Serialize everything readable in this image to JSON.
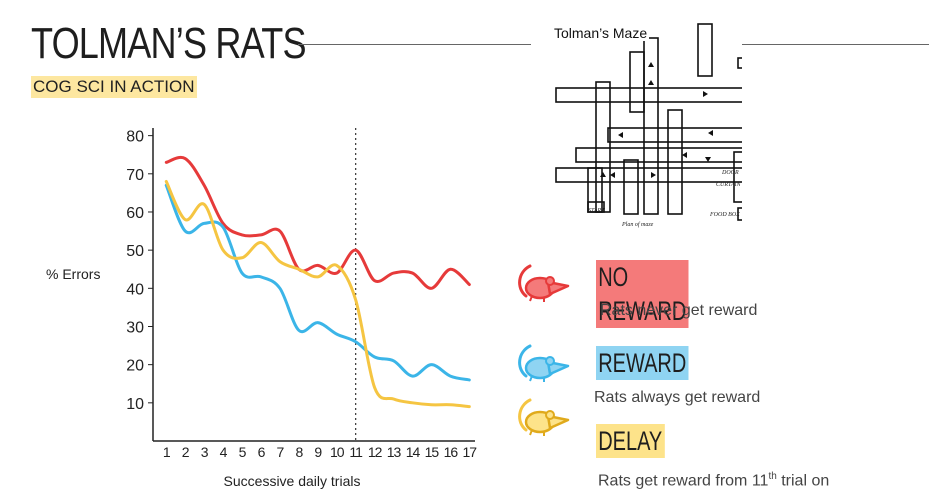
{
  "header": {
    "title": "TOLMAN’S RATS",
    "subtitle": "COG SCI IN ACTION"
  },
  "maze": {
    "title": "Tolman’s Maze",
    "labels": {
      "door": "DOOR",
      "curtain": "CURTAIN",
      "start": "START",
      "food_box": "FOOD BOX",
      "caption": "Plan of maze"
    }
  },
  "legend": {
    "no_reward": {
      "label": "NO REWARD",
      "description": "Rats never get reward",
      "color": "#e63a3a",
      "bg": "#f47a7a",
      "icon": "rat-icon"
    },
    "reward": {
      "label": "REWARD",
      "description": "Rats always get reward",
      "color": "#3bb5e8",
      "bg": "#8fd4f2",
      "icon": "rat-icon"
    },
    "delay": {
      "label": "DELAY",
      "description_prefix": "Rats get reward from 11",
      "description_sup": "th",
      "description_suffix": " trial on",
      "color": "#f5c542",
      "bg": "#fde38a",
      "icon": "rat-icon"
    }
  },
  "chart_data": {
    "type": "line",
    "xlabel": "Successive daily trials",
    "ylabel": "% Errors",
    "x": [
      1,
      2,
      3,
      4,
      5,
      6,
      7,
      8,
      9,
      10,
      11,
      12,
      13,
      14,
      15,
      16,
      17
    ],
    "yticks": [
      10,
      20,
      30,
      40,
      50,
      60,
      70,
      80
    ],
    "ylim": [
      0,
      82
    ],
    "xlim": [
      0.3,
      17.3
    ],
    "reference_line": {
      "x": 11,
      "style": "dotted"
    },
    "series": [
      {
        "name": "NO REWARD",
        "color": "#e63a3a",
        "values": [
          73,
          74,
          67,
          57,
          54,
          54,
          55,
          45,
          46,
          44,
          50,
          42,
          44,
          44,
          40,
          45,
          41
        ]
      },
      {
        "name": "REWARD",
        "color": "#3bb5e8",
        "values": [
          67,
          55,
          57,
          56,
          44,
          43,
          40,
          29,
          31,
          28,
          26,
          22,
          21,
          17,
          20,
          17,
          16
        ]
      },
      {
        "name": "DELAY",
        "color": "#f5c542",
        "values": [
          68,
          58,
          62,
          50,
          48,
          52,
          47,
          45,
          43,
          46,
          37,
          14,
          11,
          10,
          9.5,
          9.5,
          9
        ]
      }
    ]
  }
}
